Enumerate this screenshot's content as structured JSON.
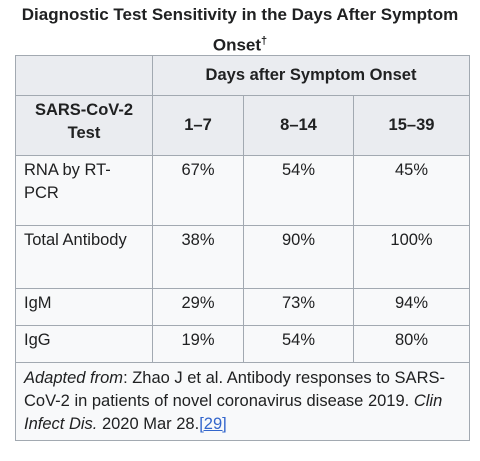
{
  "title": {
    "text": "Diagnostic Test Sensitivity in the Days After Symptom Onset",
    "mark": "†"
  },
  "table": {
    "group_header": "Days after Symptom Onset",
    "columns": [
      "SARS-CoV-2 Test",
      "1–7",
      "8–14",
      "15–39"
    ],
    "rows": [
      [
        "RNA by RT-PCR",
        "67%",
        "54%",
        "45%"
      ],
      [
        "Total Antibody",
        "38%",
        "90%",
        "100%"
      ],
      [
        "IgM",
        "29%",
        "73%",
        "94%"
      ],
      [
        "IgG",
        "19%",
        "54%",
        "80%"
      ]
    ]
  },
  "footer": {
    "label": "Adapted from",
    "text": ": Zhao J et al. Antibody responses to SARS-CoV-2 in patients of novel coronavirus disease 2019.",
    "journal": "Clin Infect Dis.",
    "date": "2020 Mar 28.",
    "ref": "[29]"
  }
}
